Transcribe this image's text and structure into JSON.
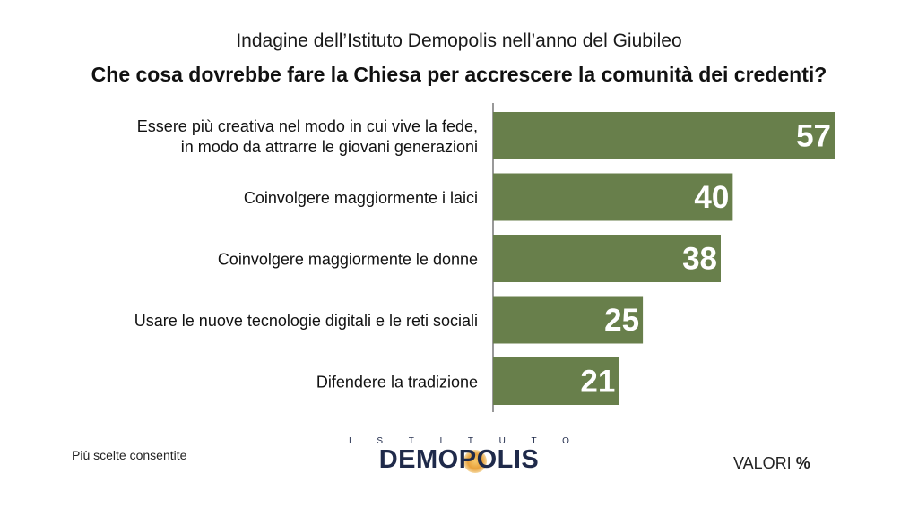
{
  "header": {
    "subtitle": "Indagine dell’Istituto Demopolis nell’anno del Giubileo",
    "title": "Che cosa dovrebbe fare la Chiesa per accrescere la comunità dei credenti?"
  },
  "chart_data": {
    "type": "bar",
    "orientation": "horizontal",
    "categories": [
      [
        "Essere più creativa nel modo in cui vive la fede,",
        "in modo da attrarre le giovani generazioni"
      ],
      [
        "Coinvolgere maggiormente i laici"
      ],
      [
        "Coinvolgere maggiormente le donne"
      ],
      [
        "Usare le nuove tecnologie digitali e le reti sociali"
      ],
      [
        "Difendere la tradizione"
      ]
    ],
    "values": [
      57,
      40,
      38,
      25,
      21
    ],
    "xlim": [
      0,
      57
    ],
    "bar_color": "#687f4b",
    "label_color": "#ffffff",
    "grid": false,
    "legend": "none"
  },
  "footer": {
    "note": "Più scelte consentite",
    "logo_top": [
      "I",
      "S",
      "T",
      "I",
      "T",
      "U",
      "T",
      "O"
    ],
    "logo_main": "DEMOPOLIS",
    "units_prefix": "VALORI",
    "units_symbol": "%"
  }
}
